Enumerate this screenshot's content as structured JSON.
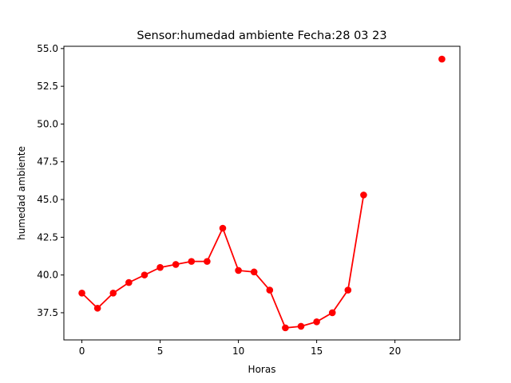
{
  "chart_data": {
    "type": "line",
    "title": "Sensor:humedad ambiente Fecha:28 03 23",
    "xlabel": "Horas",
    "ylabel": "humedad ambiente",
    "xlim": [
      -1.15,
      24.15
    ],
    "ylim": [
      35.7,
      55.15
    ],
    "xticks": [
      0,
      5,
      10,
      15,
      20
    ],
    "yticks": [
      37.5,
      40.0,
      42.5,
      45.0,
      47.5,
      50.0,
      52.5,
      55.0
    ],
    "grid": false,
    "colors": {
      "series": "#ff0000"
    },
    "series": [
      {
        "x": [
          0,
          1,
          2,
          3,
          4,
          5,
          6,
          7,
          8,
          9,
          10,
          11,
          12,
          13,
          14,
          15,
          16,
          17,
          18,
          23
        ],
        "y": [
          38.8,
          37.8,
          38.8,
          39.5,
          40.0,
          40.5,
          40.7,
          40.9,
          40.9,
          43.1,
          40.3,
          40.2,
          39.0,
          36.5,
          36.6,
          36.9,
          37.5,
          39.0,
          45.3,
          54.3
        ],
        "segments": [
          [
            0,
            18
          ],
          [
            23,
            23
          ]
        ]
      }
    ]
  }
}
